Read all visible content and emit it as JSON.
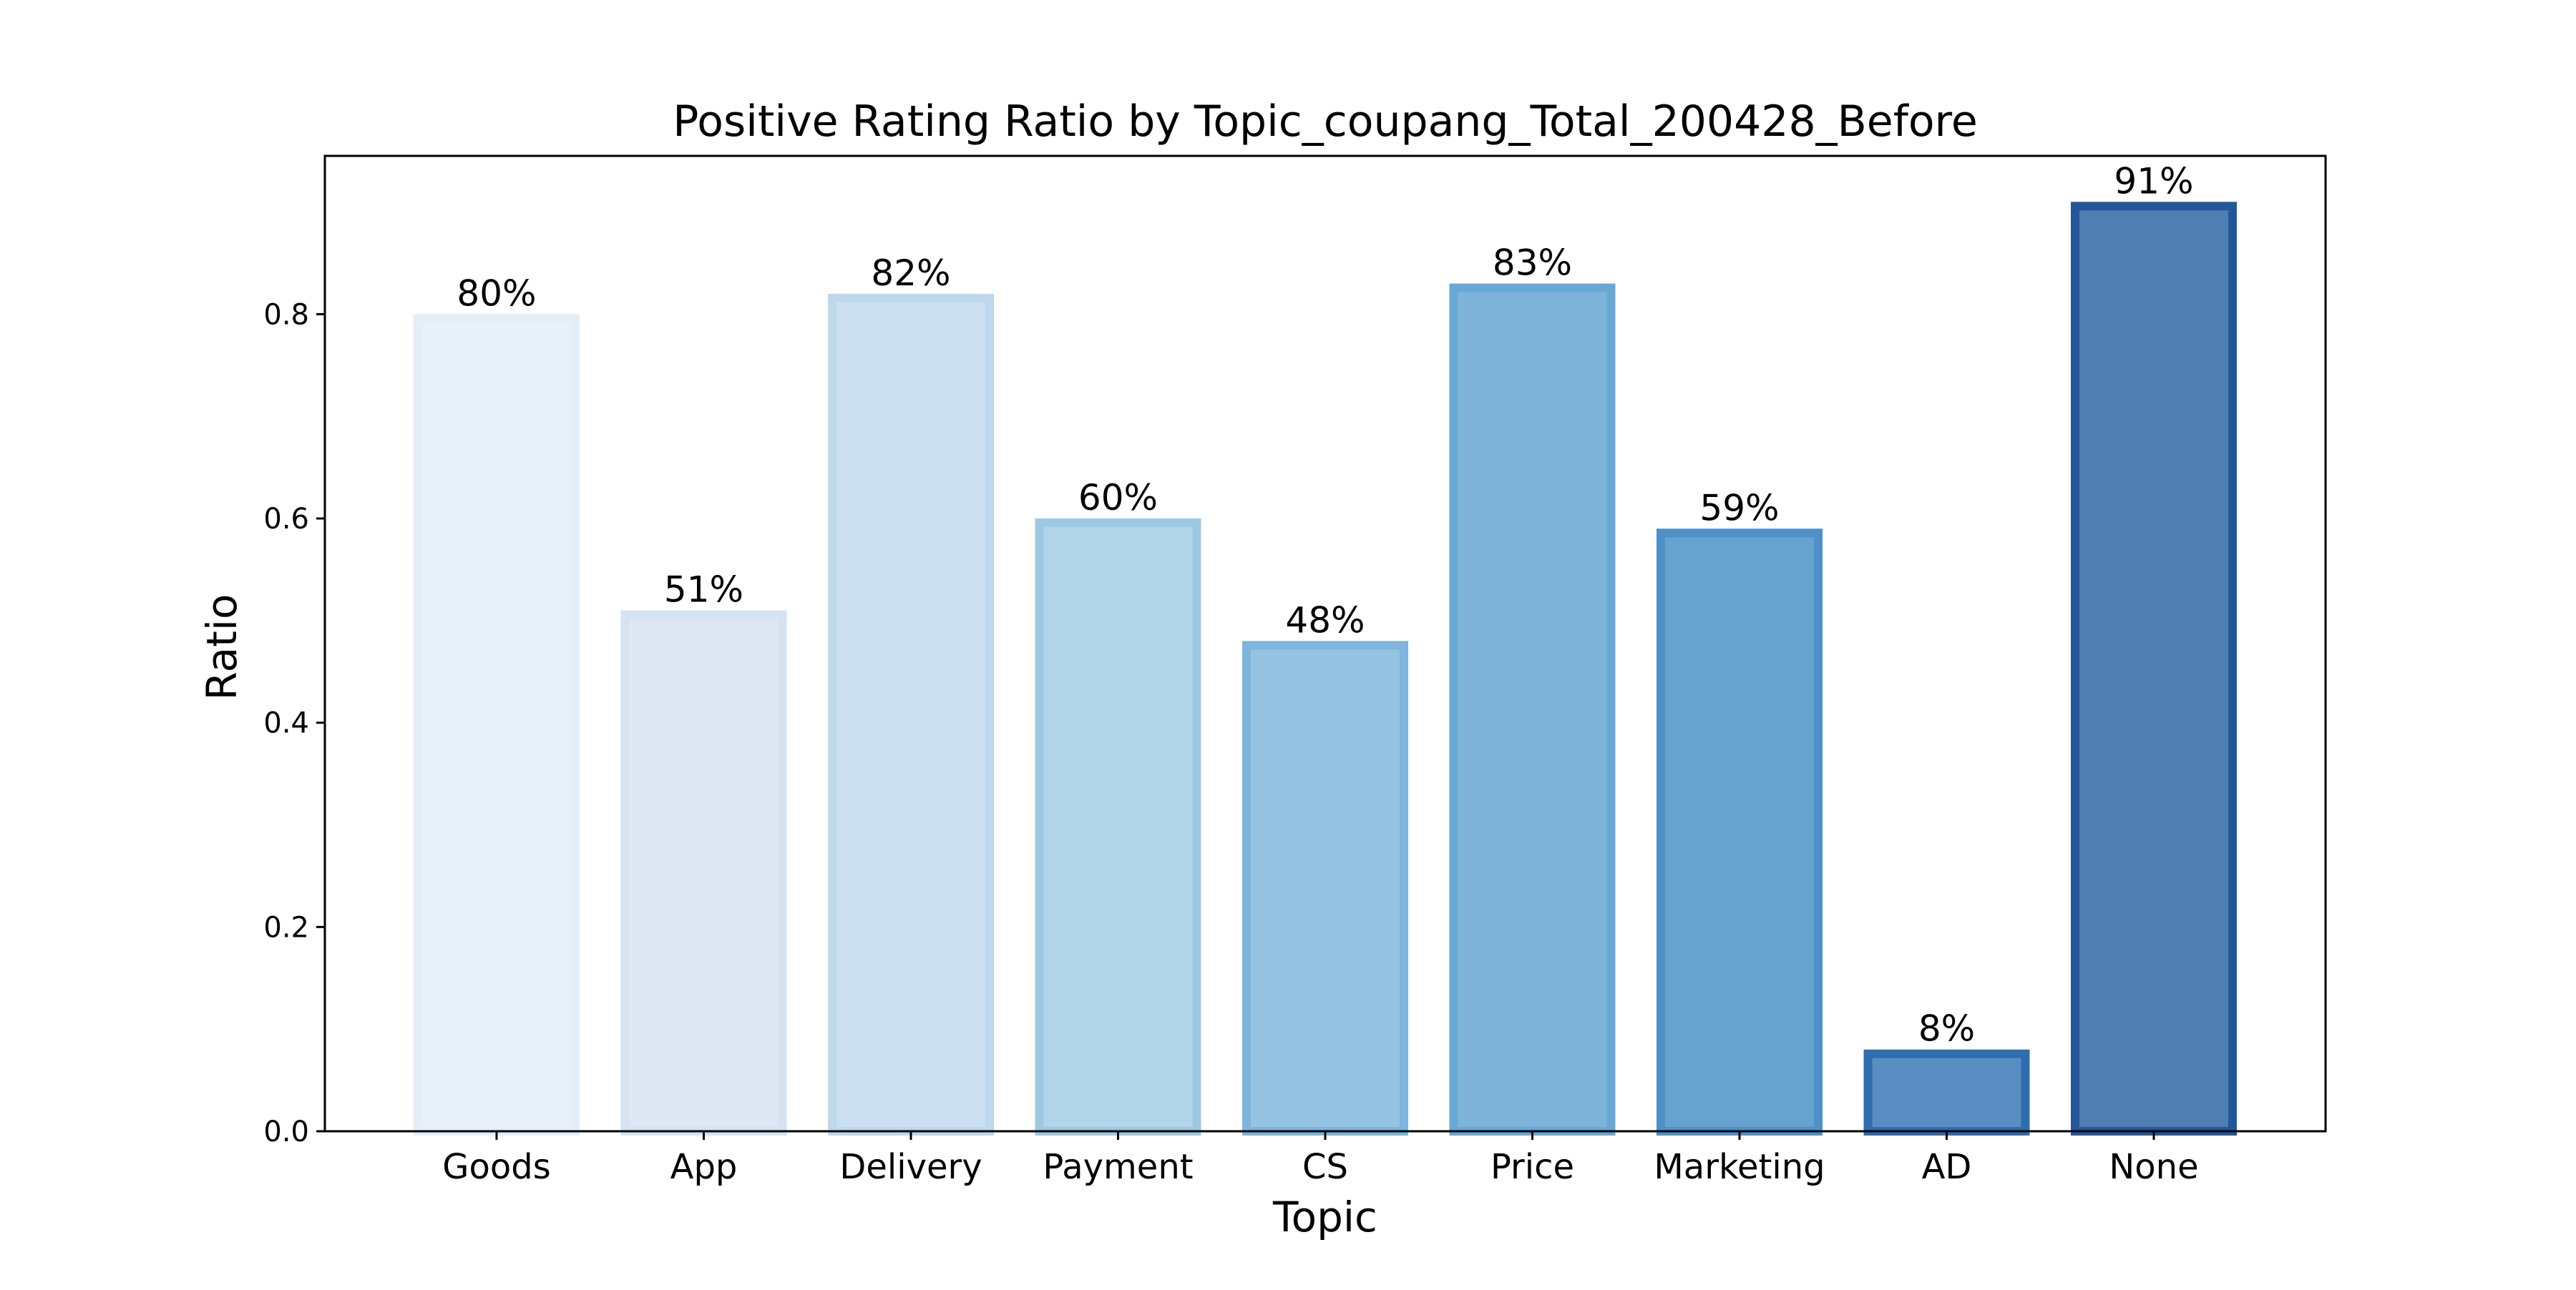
{
  "chart_data": {
    "type": "bar",
    "title": "Positive Rating Ratio by Topic_coupang_Total_200428_Before",
    "xlabel": "Topic",
    "ylabel": "Ratio",
    "categories": [
      "Goods",
      "App",
      "Delivery",
      "Payment",
      "CS",
      "Price",
      "Marketing",
      "AD",
      "None"
    ],
    "values": [
      0.8,
      0.51,
      0.82,
      0.6,
      0.48,
      0.83,
      0.59,
      0.08,
      0.91
    ],
    "data_labels": [
      "80%",
      "51%",
      "82%",
      "60%",
      "48%",
      "83%",
      "59%",
      "8%",
      "91%"
    ],
    "ylim": [
      0,
      0.955
    ],
    "yticks": [
      0.0,
      0.2,
      0.4,
      0.6,
      0.8
    ],
    "ytick_labels": [
      "0.0",
      "0.2",
      "0.4",
      "0.6",
      "0.8"
    ],
    "grid": false,
    "legend": "none",
    "colors": {
      "fills": [
        "#e8f1fa",
        "#dde8f4",
        "#ccdff0",
        "#b2d4e8",
        "#94c4e2",
        "#7eb4d9",
        "#68a3d0",
        "#5a8dc2",
        "#4f7fb2"
      ],
      "edges": [
        "#e3eef9",
        "#d5e3f2",
        "#bed8ec",
        "#9dc8e2",
        "#7db5dc",
        "#68a8d6",
        "#4d91c8",
        "#2e6daf",
        "#24569a"
      ]
    }
  }
}
